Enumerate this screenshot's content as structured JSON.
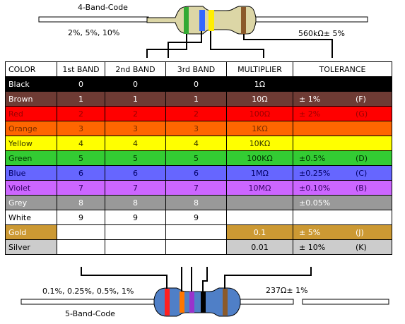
{
  "top": {
    "title": "4-Band-Code",
    "left_caption": "2%, 5%, 10%",
    "right_caption": "560kΩ± 5%"
  },
  "bottom": {
    "title": "5-Band-Code",
    "left_caption": "0.1%, 0.25%, 0.5%, 1%",
    "right_caption": "237Ω± 1%"
  },
  "table": {
    "headers": [
      "COLOR",
      "1st BAND",
      "2nd BAND",
      "3rd BAND",
      "MULTIPLIER",
      "TOLERANCE"
    ],
    "rows": [
      {
        "name": "Black",
        "b1": "0",
        "b2": "0",
        "b3": "0",
        "mult": "1Ω",
        "tol": "",
        "code": "",
        "bg": "#000000",
        "fg": "#ffffff",
        "mult_bg": "#000000",
        "mult_fg": "#ffffff",
        "tol_bg": "#000000"
      },
      {
        "name": "Brown",
        "b1": "1",
        "b2": "1",
        "b3": "1",
        "mult": "10Ω",
        "tol": "±   1%",
        "code": "(F)",
        "bg": "#6e3b34",
        "fg": "#ffffff",
        "mult_bg": "#6e3b34",
        "mult_fg": "#ffffff",
        "tol_bg": "#6e3b34"
      },
      {
        "name": "Red",
        "b1": "2",
        "b2": "2",
        "b3": "2",
        "mult": "100Ω",
        "tol": "±   2%",
        "code": "(G)",
        "bg": "#ff0000",
        "fg": "#990000",
        "mult_bg": "#ff0000",
        "mult_fg": "#990000",
        "tol_bg": "#ff0000"
      },
      {
        "name": "Orange",
        "b1": "3",
        "b2": "3",
        "b3": "3",
        "mult": "1KΩ",
        "tol": "",
        "code": "",
        "bg": "#ff6600",
        "fg": "#7a2c00",
        "mult_bg": "#ff6600",
        "mult_fg": "#7a2c00",
        "tol_bg": "#ff6600"
      },
      {
        "name": "Yellow",
        "b1": "4",
        "b2": "4",
        "b3": "4",
        "mult": "10KΩ",
        "tol": "",
        "code": "",
        "bg": "#ffff00",
        "fg": "#333300",
        "mult_bg": "#ffff00",
        "mult_fg": "#333300",
        "tol_bg": "#ffff00"
      },
      {
        "name": "Green",
        "b1": "5",
        "b2": "5",
        "b3": "5",
        "mult": "100KΩ",
        "tol": "±0.5%",
        "code": "(D)",
        "bg": "#33cc33",
        "fg": "#003300",
        "mult_bg": "#33cc33",
        "mult_fg": "#003300",
        "tol_bg": "#33cc33"
      },
      {
        "name": "Blue",
        "b1": "6",
        "b2": "6",
        "b3": "6",
        "mult": "1MΩ",
        "tol": "±0.25%",
        "code": "(C)",
        "bg": "#6666ff",
        "fg": "#000066",
        "mult_bg": "#6666ff",
        "mult_fg": "#000066",
        "tol_bg": "#6666ff"
      },
      {
        "name": "Violet",
        "b1": "7",
        "b2": "7",
        "b3": "7",
        "mult": "10MΩ",
        "tol": "±0.10%",
        "code": "(B)",
        "bg": "#cc66ff",
        "fg": "#330066",
        "mult_bg": "#cc66ff",
        "mult_fg": "#330066",
        "tol_bg": "#cc66ff"
      },
      {
        "name": "Grey",
        "b1": "8",
        "b2": "8",
        "b3": "8",
        "mult": "",
        "tol": "±0.05%",
        "code": "",
        "bg": "#999999",
        "fg": "#ffffff",
        "mult_bg": "#999999",
        "mult_fg": "#ffffff",
        "tol_bg": "#999999"
      },
      {
        "name": "White",
        "b1": "9",
        "b2": "9",
        "b3": "9",
        "mult": "",
        "tol": "",
        "code": "",
        "bg": "#ffffff",
        "fg": "#000000",
        "mult_bg": "#ffffff",
        "mult_fg": "#000000",
        "tol_bg": "#ffffff"
      },
      {
        "name": "Gold",
        "b1": "",
        "b2": "",
        "b3": "",
        "mult": "0.1",
        "tol": "±   5%",
        "code": "(J)",
        "bg": "#cc9933",
        "fg": "#ffffff",
        "mult_bg": "#cc9933",
        "mult_fg": "#ffffff",
        "tol_bg": "#cc9933",
        "band_bg": "#ffffff"
      },
      {
        "name": "Silver",
        "b1": "",
        "b2": "",
        "b3": "",
        "mult": "0.01",
        "tol": "±  10%",
        "code": "(K)",
        "bg": "#cccccc",
        "fg": "#000000",
        "mult_bg": "#cccccc",
        "mult_fg": "#000000",
        "tol_bg": "#cccccc",
        "band_bg": "#ffffff"
      }
    ]
  },
  "colors": {
    "resistor_body": "#dcd6a6",
    "band_green": "#33aa33",
    "band_blue": "#3366ff",
    "band_yellow": "#ffee00",
    "band_brown": "#8b5a2b",
    "band_red": "#ff2020",
    "band_orange": "#ff7700",
    "band_violet": "#9933cc",
    "band_black": "#000000",
    "body5": "#4f7fc7"
  }
}
